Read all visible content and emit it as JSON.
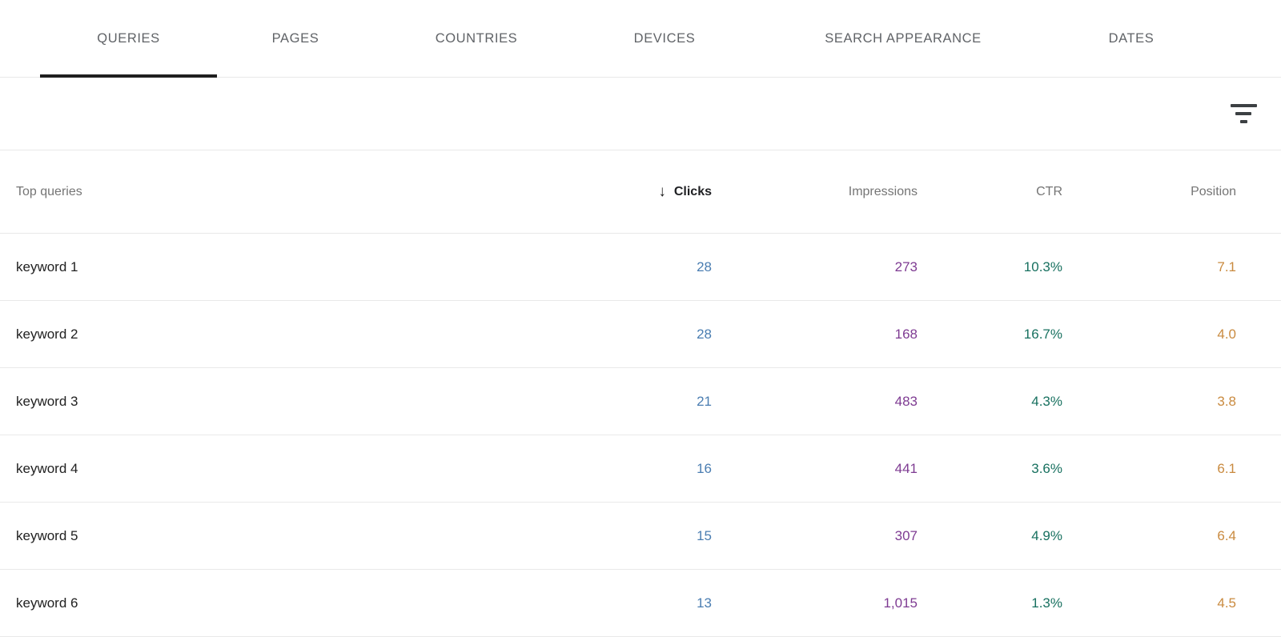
{
  "tabs": [
    {
      "label": "QUERIES",
      "active": true
    },
    {
      "label": "PAGES",
      "active": false
    },
    {
      "label": "COUNTRIES",
      "active": false
    },
    {
      "label": "DEVICES",
      "active": false
    },
    {
      "label": "SEARCH APPEARANCE",
      "active": false
    },
    {
      "label": "DATES",
      "active": false
    }
  ],
  "filter_bar": {
    "filter_icon": "filter-list-icon"
  },
  "table": {
    "columns": {
      "query": "Top queries",
      "clicks": "Clicks",
      "impressions": "Impressions",
      "ctr": "CTR",
      "position": "Position"
    },
    "sort": {
      "column": "Clicks",
      "direction": "desc",
      "arrow": "↓"
    },
    "rows": [
      {
        "query": "keyword 1",
        "clicks": "28",
        "impressions": "273",
        "ctr": "10.3%",
        "position": "7.1"
      },
      {
        "query": "keyword 2",
        "clicks": "28",
        "impressions": "168",
        "ctr": "16.7%",
        "position": "4.0"
      },
      {
        "query": "keyword 3",
        "clicks": "21",
        "impressions": "483",
        "ctr": "4.3%",
        "position": "3.8"
      },
      {
        "query": "keyword 4",
        "clicks": "16",
        "impressions": "441",
        "ctr": "3.6%",
        "position": "6.1"
      },
      {
        "query": "keyword 5",
        "clicks": "15",
        "impressions": "307",
        "ctr": "4.9%",
        "position": "6.4"
      },
      {
        "query": "keyword 6",
        "clicks": "13",
        "impressions": "1,015",
        "ctr": "1.3%",
        "position": "4.5"
      }
    ]
  },
  "colors": {
    "clicks": "#4a7db1",
    "impressions": "#7e3b92",
    "ctr": "#17705f",
    "position": "#c98a3f",
    "underline": "#1f1f1f"
  }
}
